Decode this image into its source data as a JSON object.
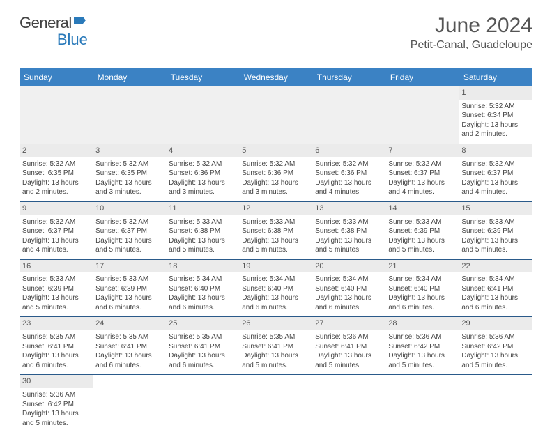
{
  "brand": {
    "part1": "General",
    "part2": "Blue"
  },
  "title": "June 2024",
  "location": "Petit-Canal, Guadeloupe",
  "colors": {
    "header_bg": "#3b82c4",
    "header_text": "#ffffff",
    "row_divider": "#2a5a8a",
    "daynum_bg": "#ebebeb",
    "empty_bg": "#f0f0f0",
    "brand_blue": "#2a7aba"
  },
  "weekdays": [
    "Sunday",
    "Monday",
    "Tuesday",
    "Wednesday",
    "Thursday",
    "Friday",
    "Saturday"
  ],
  "first_weekday_index": 6,
  "days": [
    {
      "n": 1,
      "sunrise": "5:32 AM",
      "sunset": "6:34 PM",
      "daylight": "13 hours and 2 minutes."
    },
    {
      "n": 2,
      "sunrise": "5:32 AM",
      "sunset": "6:35 PM",
      "daylight": "13 hours and 2 minutes."
    },
    {
      "n": 3,
      "sunrise": "5:32 AM",
      "sunset": "6:35 PM",
      "daylight": "13 hours and 3 minutes."
    },
    {
      "n": 4,
      "sunrise": "5:32 AM",
      "sunset": "6:36 PM",
      "daylight": "13 hours and 3 minutes."
    },
    {
      "n": 5,
      "sunrise": "5:32 AM",
      "sunset": "6:36 PM",
      "daylight": "13 hours and 3 minutes."
    },
    {
      "n": 6,
      "sunrise": "5:32 AM",
      "sunset": "6:36 PM",
      "daylight": "13 hours and 4 minutes."
    },
    {
      "n": 7,
      "sunrise": "5:32 AM",
      "sunset": "6:37 PM",
      "daylight": "13 hours and 4 minutes."
    },
    {
      "n": 8,
      "sunrise": "5:32 AM",
      "sunset": "6:37 PM",
      "daylight": "13 hours and 4 minutes."
    },
    {
      "n": 9,
      "sunrise": "5:32 AM",
      "sunset": "6:37 PM",
      "daylight": "13 hours and 4 minutes."
    },
    {
      "n": 10,
      "sunrise": "5:32 AM",
      "sunset": "6:37 PM",
      "daylight": "13 hours and 5 minutes."
    },
    {
      "n": 11,
      "sunrise": "5:33 AM",
      "sunset": "6:38 PM",
      "daylight": "13 hours and 5 minutes."
    },
    {
      "n": 12,
      "sunrise": "5:33 AM",
      "sunset": "6:38 PM",
      "daylight": "13 hours and 5 minutes."
    },
    {
      "n": 13,
      "sunrise": "5:33 AM",
      "sunset": "6:38 PM",
      "daylight": "13 hours and 5 minutes."
    },
    {
      "n": 14,
      "sunrise": "5:33 AM",
      "sunset": "6:39 PM",
      "daylight": "13 hours and 5 minutes."
    },
    {
      "n": 15,
      "sunrise": "5:33 AM",
      "sunset": "6:39 PM",
      "daylight": "13 hours and 5 minutes."
    },
    {
      "n": 16,
      "sunrise": "5:33 AM",
      "sunset": "6:39 PM",
      "daylight": "13 hours and 5 minutes."
    },
    {
      "n": 17,
      "sunrise": "5:33 AM",
      "sunset": "6:39 PM",
      "daylight": "13 hours and 6 minutes."
    },
    {
      "n": 18,
      "sunrise": "5:34 AM",
      "sunset": "6:40 PM",
      "daylight": "13 hours and 6 minutes."
    },
    {
      "n": 19,
      "sunrise": "5:34 AM",
      "sunset": "6:40 PM",
      "daylight": "13 hours and 6 minutes."
    },
    {
      "n": 20,
      "sunrise": "5:34 AM",
      "sunset": "6:40 PM",
      "daylight": "13 hours and 6 minutes."
    },
    {
      "n": 21,
      "sunrise": "5:34 AM",
      "sunset": "6:40 PM",
      "daylight": "13 hours and 6 minutes."
    },
    {
      "n": 22,
      "sunrise": "5:34 AM",
      "sunset": "6:41 PM",
      "daylight": "13 hours and 6 minutes."
    },
    {
      "n": 23,
      "sunrise": "5:35 AM",
      "sunset": "6:41 PM",
      "daylight": "13 hours and 6 minutes."
    },
    {
      "n": 24,
      "sunrise": "5:35 AM",
      "sunset": "6:41 PM",
      "daylight": "13 hours and 6 minutes."
    },
    {
      "n": 25,
      "sunrise": "5:35 AM",
      "sunset": "6:41 PM",
      "daylight": "13 hours and 6 minutes."
    },
    {
      "n": 26,
      "sunrise": "5:35 AM",
      "sunset": "6:41 PM",
      "daylight": "13 hours and 5 minutes."
    },
    {
      "n": 27,
      "sunrise": "5:36 AM",
      "sunset": "6:41 PM",
      "daylight": "13 hours and 5 minutes."
    },
    {
      "n": 28,
      "sunrise": "5:36 AM",
      "sunset": "6:42 PM",
      "daylight": "13 hours and 5 minutes."
    },
    {
      "n": 29,
      "sunrise": "5:36 AM",
      "sunset": "6:42 PM",
      "daylight": "13 hours and 5 minutes."
    },
    {
      "n": 30,
      "sunrise": "5:36 AM",
      "sunset": "6:42 PM",
      "daylight": "13 hours and 5 minutes."
    }
  ],
  "labels": {
    "sunrise": "Sunrise:",
    "sunset": "Sunset:",
    "daylight": "Daylight:"
  }
}
